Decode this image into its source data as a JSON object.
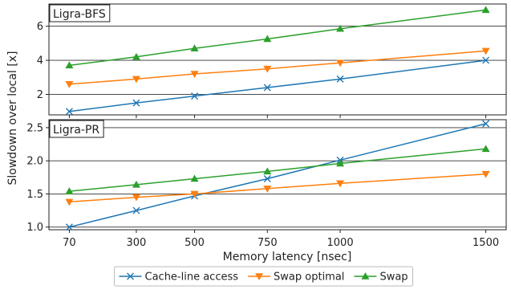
{
  "chart_data": [
    {
      "type": "line",
      "panel_label": "Ligra-BFS",
      "x": [
        70,
        300,
        500,
        750,
        1000,
        1500
      ],
      "xlim": [
        0,
        1570
      ],
      "ylim": [
        0.8,
        7.3
      ],
      "yticks": [
        2,
        4,
        6
      ],
      "grid": true,
      "series": [
        {
          "name": "Cache-line access",
          "values": [
            1.0,
            1.5,
            1.9,
            2.4,
            2.9,
            4.0
          ],
          "color": "#1f77b4",
          "marker": "x"
        },
        {
          "name": "Swap optimal",
          "values": [
            2.6,
            2.9,
            3.2,
            3.5,
            3.85,
            4.55
          ],
          "color": "#ff7f0e",
          "marker": "triangle-down"
        },
        {
          "name": "Swap",
          "values": [
            3.7,
            4.2,
            4.7,
            5.25,
            5.85,
            6.95
          ],
          "color": "#2ca02c",
          "marker": "triangle-up"
        }
      ]
    },
    {
      "type": "line",
      "panel_label": "Ligra-PR",
      "x": [
        70,
        300,
        500,
        750,
        1000,
        1500
      ],
      "xlim": [
        0,
        1570
      ],
      "ylim": [
        0.96,
        2.62
      ],
      "yticks": [
        1.0,
        1.5,
        2.0,
        2.5
      ],
      "ytick_labels": [
        "1.0",
        "1.5",
        "2.0",
        "2.5"
      ],
      "grid": true,
      "series": [
        {
          "name": "Cache-line access",
          "values": [
            1.0,
            1.25,
            1.47,
            1.73,
            2.01,
            2.56
          ],
          "color": "#1f77b4",
          "marker": "x"
        },
        {
          "name": "Swap optimal",
          "values": [
            1.38,
            1.45,
            1.5,
            1.58,
            1.66,
            1.8
          ],
          "color": "#ff7f0e",
          "marker": "triangle-down"
        },
        {
          "name": "Swap",
          "values": [
            1.54,
            1.64,
            1.73,
            1.84,
            1.96,
            2.18
          ],
          "color": "#2ca02c",
          "marker": "triangle-up"
        }
      ]
    }
  ],
  "xlabel": "Memory latency [nsec]",
  "ylabel": "Slowdown over local [x]",
  "xtick_labels": [
    "70",
    "300",
    "500",
    "750",
    "1000",
    "1500"
  ],
  "legend": {
    "placement": "bottom-center",
    "items": [
      "Cache-line access",
      "Swap optimal",
      "Swap"
    ]
  }
}
